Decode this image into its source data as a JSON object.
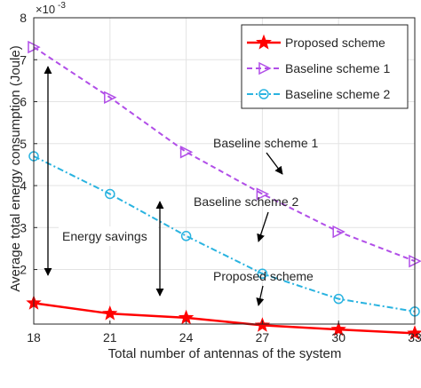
{
  "chart_data": {
    "type": "line",
    "title": "",
    "xlabel": "Total number of antennas of the system",
    "ylabel": "Average total energy consumption (Joule)",
    "y_exponent_label": "×10",
    "y_exponent_power": "-3",
    "x": [
      18,
      21,
      24,
      27,
      30,
      33
    ],
    "xlim": [
      18,
      33
    ],
    "ylim": [
      0.0007,
      0.008
    ],
    "xticks": [
      "18",
      "21",
      "24",
      "27",
      "30",
      "33"
    ],
    "yticks": [
      {
        "value": 0.002,
        "label": "2"
      },
      {
        "value": 0.003,
        "label": "3"
      },
      {
        "value": 0.004,
        "label": "4"
      },
      {
        "value": 0.005,
        "label": "5"
      },
      {
        "value": 0.006,
        "label": "6"
      },
      {
        "value": 0.007,
        "label": "7"
      },
      {
        "value": 0.008,
        "label": "8"
      }
    ],
    "grid": true,
    "legend_position": "top-right",
    "series": [
      {
        "name": "Proposed scheme",
        "values": [
          0.0012,
          0.00095,
          0.00085,
          0.00067,
          0.00057,
          0.00048
        ],
        "color": "#ff0000",
        "marker": "star",
        "line": "solid"
      },
      {
        "name": "Baseline scheme 1",
        "values": [
          0.0073,
          0.0061,
          0.0048,
          0.0038,
          0.0029,
          0.0022
        ],
        "color": "#b14ee8",
        "marker": "triangle-right",
        "line": "dashed"
      },
      {
        "name": "Baseline scheme 2",
        "values": [
          0.0047,
          0.0038,
          0.0028,
          0.0019,
          0.0013,
          0.001
        ],
        "color": "#29b3e0",
        "marker": "circle",
        "line": "dashdot"
      }
    ],
    "annotations": {
      "label_baseline1": "Baseline scheme 1",
      "label_baseline2": "Baseline scheme 2",
      "label_proposed": "Proposed scheme",
      "label_savings": "Energy savings"
    }
  }
}
